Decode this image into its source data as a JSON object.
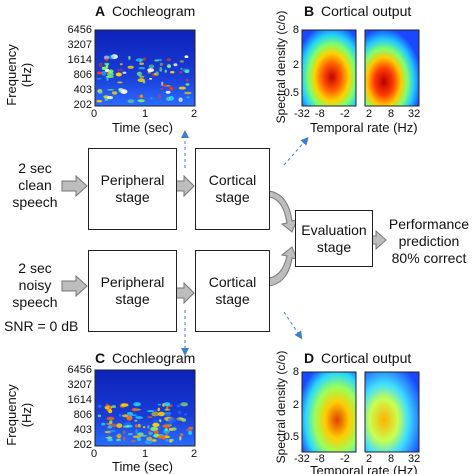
{
  "panels": {
    "A": {
      "letter": "A",
      "title": "Cochleogram"
    },
    "B": {
      "letter": "B",
      "title": "Cortical output"
    },
    "C": {
      "letter": "C",
      "title": "Cochleogram"
    },
    "D": {
      "letter": "D",
      "title": "Cortical output"
    }
  },
  "cochleogram_axes": {
    "y_title": "Frequency (Hz)",
    "y_ticks": [
      "6456",
      "3207",
      "1614",
      "806",
      "403",
      "202"
    ],
    "x_title": "Time (sec)",
    "x_ticks": [
      "0",
      "1",
      "2"
    ]
  },
  "cortical_axes": {
    "y_title": "Spectral density (c/o)",
    "y_ticks": [
      "8",
      "2",
      "0.5"
    ],
    "x_title": "Temporal rate (Hz)",
    "x_ticks": [
      "-32",
      "-8",
      "-2",
      "2",
      "8",
      "32"
    ]
  },
  "inputs": {
    "clean": {
      "line1": "2 sec",
      "line2": "clean",
      "line3": "speech"
    },
    "noisy": {
      "line1": "2 sec",
      "line2": "noisy",
      "line3": "speech",
      "snr": "SNR = 0 dB"
    }
  },
  "stages": {
    "peripheral": {
      "line1": "Peripheral",
      "line2": "stage"
    },
    "cortical": {
      "line1": "Cortical",
      "line2": "stage"
    },
    "evaluation": {
      "line1": "Evaluation",
      "line2": "stage"
    }
  },
  "output": {
    "line1": "Performance",
    "line2": "prediction",
    "line3": "80% correct"
  },
  "colors": {
    "map_low": "#1a3cd6",
    "map_high": "#d40000",
    "arrow_fill": "#bdbdbd",
    "dashed_arrow": "#3a7fd0"
  }
}
